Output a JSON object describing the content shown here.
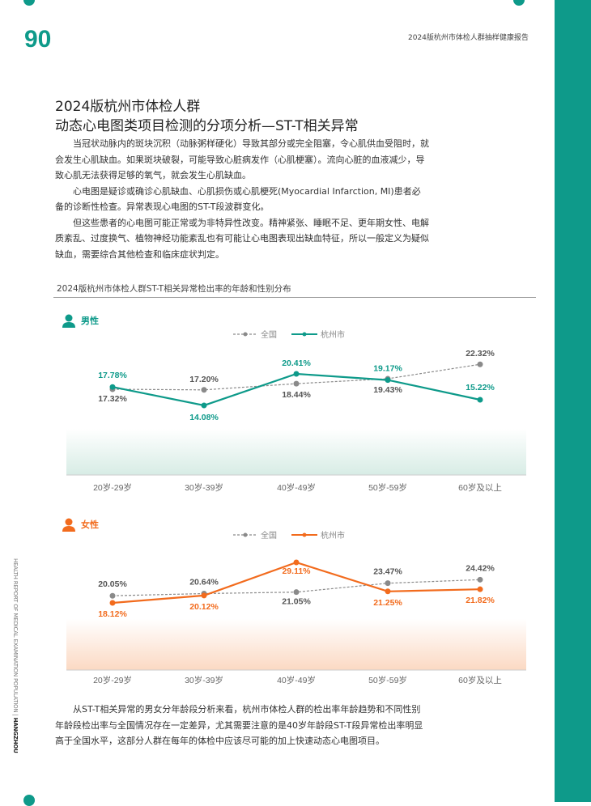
{
  "page_number": "90",
  "running_header": "2024版杭州市体检人群抽样健康报告",
  "title_line1": "2024版杭州市体检人群",
  "title_line2": "动态心电图类项目检测的分项分析—ST-T相关异常",
  "paragraphs": [
    "当冠状动脉内的斑块沉积（动脉粥样硬化）导致其部分或完全阻塞，令心肌供血受阻时，就会发生心肌缺血。如果斑块破裂，可能导致心脏病发作（心肌梗塞）。流向心脏的血液减少，导致心肌无法获得足够的氧气，就会发生心肌缺血。",
    "心电图是疑诊或确诊心肌缺血、心肌损伤或心肌梗死(Myocardial Infarction, MI)患者必备的诊断性检查。异常表现心电图的ST-T段波群变化。",
    "但这些患者的心电图可能正常或为非特异性改变。精神紧张、睡眠不足、更年期女性、电解质紊乱、过度换气、植物神经功能紊乱也有可能让心电图表现出缺血特征，所以一般定义为疑似缺血，需要综合其他检查和临床症状判定。",
    "从ST-T相关异常的男女分年龄段分析来看，杭州市体检人群的检出率年龄趋势和不同性别年龄段检出率与全国情况存在一定差异，尤其需要注意的是40岁年龄段ST-T段异常检出率明显高于全国水平，这部分人群在每年的体检中应该尽可能的加上快速动态心电图项目。"
  ],
  "chart_section_title": "2024版杭州市体检人群ST-T相关异常检出率的年龄和性别分布",
  "side_text": "HEALTH REPORT OF MEDICAL EXAMINATION POPULATION",
  "side_text_bold": "HANGZHOU",
  "colors": {
    "teal": "#0e9a8a",
    "orange": "#f26b1d",
    "gray": "#8a8a8a"
  },
  "chart_data": [
    {
      "type": "line",
      "title": "男性",
      "categories": [
        "20岁-29岁",
        "30岁-39岁",
        "40岁-49岁",
        "50岁-59岁",
        "60岁及以上"
      ],
      "series": [
        {
          "name": "全国",
          "values": [
            17.32,
            17.2,
            18.44,
            19.43,
            22.32
          ],
          "labels": [
            "17.32%",
            "17.20%",
            "18.44%",
            "19.43%",
            "22.32%"
          ]
        },
        {
          "name": "杭州市",
          "values": [
            17.78,
            14.08,
            20.41,
            19.17,
            15.22
          ],
          "labels": [
            "17.78%",
            "14.08%",
            "20.41%",
            "19.17%",
            "15.22%"
          ]
        }
      ],
      "legend": "top-center"
    },
    {
      "type": "line",
      "title": "女性",
      "categories": [
        "20岁-29岁",
        "30岁-39岁",
        "40岁-49岁",
        "50岁-59岁",
        "60岁及以上"
      ],
      "series": [
        {
          "name": "全国",
          "values": [
            20.05,
            20.64,
            21.05,
            23.47,
            24.42
          ],
          "labels": [
            "20.05%",
            "20.64%",
            "21.05%",
            "23.47%",
            "24.42%"
          ]
        },
        {
          "name": "杭州市",
          "values": [
            18.12,
            20.12,
            29.11,
            21.25,
            21.82
          ],
          "labels": [
            "18.12%",
            "20.12%",
            "29.11%",
            "21.25%",
            "21.82%"
          ]
        }
      ],
      "legend": "top-center"
    }
  ]
}
